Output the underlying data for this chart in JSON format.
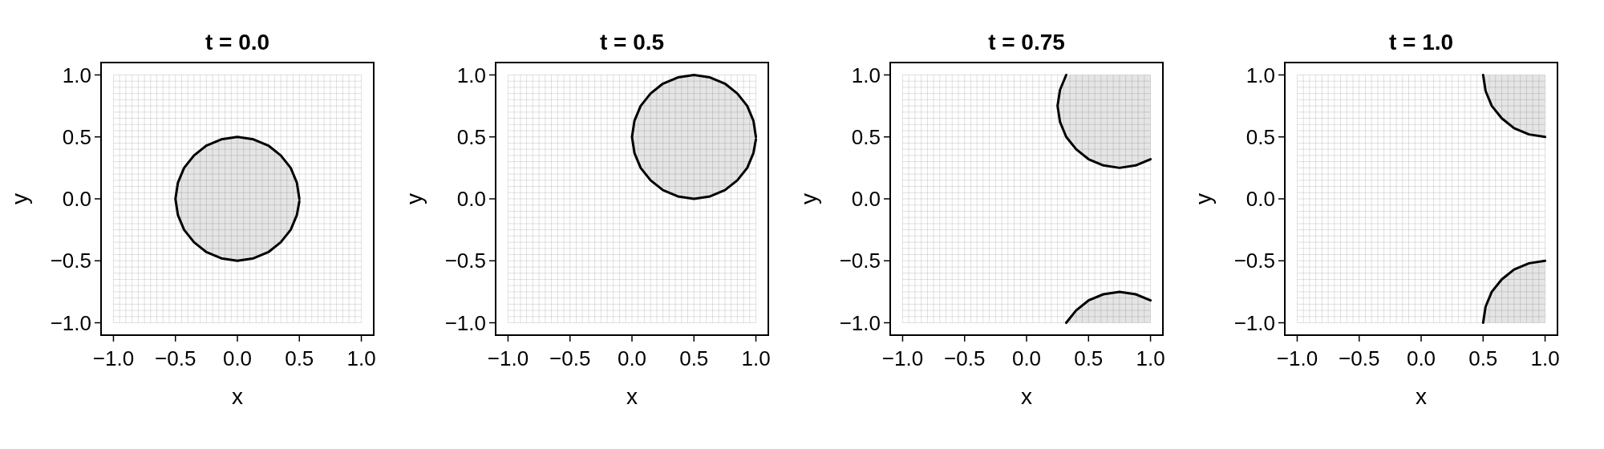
{
  "chart_data": [
    {
      "type": "line",
      "title": "t = 0.0",
      "xlabel": "x",
      "ylabel": "y",
      "xlim": [
        -1.1,
        1.1
      ],
      "ylim": [
        -1.1,
        1.1
      ],
      "grid": true,
      "xticks": [
        {
          "value": -1,
          "label": "−1.0"
        },
        {
          "value": -0.95,
          "label": null
        },
        {
          "value": -0.9,
          "label": null
        },
        {
          "value": -0.85,
          "label": null
        },
        {
          "value": -0.8,
          "label": null
        },
        {
          "value": -0.75,
          "label": null
        },
        {
          "value": -0.7,
          "label": null
        },
        {
          "value": -0.65,
          "label": null
        },
        {
          "value": -0.6,
          "label": null
        },
        {
          "value": -0.55,
          "label": null
        },
        {
          "value": -0.5,
          "label": "−0.5"
        },
        {
          "value": -0.45,
          "label": null
        },
        {
          "value": -0.4,
          "label": null
        },
        {
          "value": -0.35,
          "label": null
        },
        {
          "value": -0.3,
          "label": null
        },
        {
          "value": -0.25,
          "label": null
        },
        {
          "value": -0.2,
          "label": null
        },
        {
          "value": -0.15,
          "label": null
        },
        {
          "value": -0.1,
          "label": null
        },
        {
          "value": -0.05,
          "label": null
        },
        {
          "value": 0,
          "label": "0.0"
        },
        {
          "value": 0.05,
          "label": null
        },
        {
          "value": 0.1,
          "label": null
        },
        {
          "value": 0.15,
          "label": null
        },
        {
          "value": 0.2,
          "label": null
        },
        {
          "value": 0.25,
          "label": null
        },
        {
          "value": 0.3,
          "label": null
        },
        {
          "value": 0.35,
          "label": null
        },
        {
          "value": 0.4,
          "label": null
        },
        {
          "value": 0.45,
          "label": null
        },
        {
          "value": 0.5,
          "label": "0.5"
        },
        {
          "value": 0.55,
          "label": null
        },
        {
          "value": 0.6,
          "label": null
        },
        {
          "value": 0.65,
          "label": null
        },
        {
          "value": 0.7,
          "label": null
        },
        {
          "value": 0.75,
          "label": null
        },
        {
          "value": 0.8,
          "label": null
        },
        {
          "value": 0.85,
          "label": null
        },
        {
          "value": 0.9,
          "label": null
        },
        {
          "value": 0.95,
          "label": null
        },
        {
          "value": 1,
          "label": "1.0"
        }
      ],
      "yticks": [
        {
          "value": -1,
          "label": "−1.0"
        },
        {
          "value": -0.95,
          "label": null
        },
        {
          "value": -0.9,
          "label": null
        },
        {
          "value": -0.85,
          "label": null
        },
        {
          "value": -0.8,
          "label": null
        },
        {
          "value": -0.75,
          "label": null
        },
        {
          "value": -0.7,
          "label": null
        },
        {
          "value": -0.65,
          "label": null
        },
        {
          "value": -0.6,
          "label": null
        },
        {
          "value": -0.55,
          "label": null
        },
        {
          "value": -0.5,
          "label": "−0.5"
        },
        {
          "value": -0.45,
          "label": null
        },
        {
          "value": -0.4,
          "label": null
        },
        {
          "value": -0.35,
          "label": null
        },
        {
          "value": -0.3,
          "label": null
        },
        {
          "value": -0.25,
          "label": null
        },
        {
          "value": -0.2,
          "label": null
        },
        {
          "value": -0.15,
          "label": null
        },
        {
          "value": -0.1,
          "label": null
        },
        {
          "value": -0.05,
          "label": null
        },
        {
          "value": 0,
          "label": "0.0"
        },
        {
          "value": 0.05,
          "label": null
        },
        {
          "value": 0.1,
          "label": null
        },
        {
          "value": 0.15,
          "label": null
        },
        {
          "value": 0.2,
          "label": null
        },
        {
          "value": 0.25,
          "label": null
        },
        {
          "value": 0.3,
          "label": null
        },
        {
          "value": 0.35,
          "label": null
        },
        {
          "value": 0.4,
          "label": null
        },
        {
          "value": 0.45,
          "label": null
        },
        {
          "value": 0.5,
          "label": "0.5"
        },
        {
          "value": 0.55,
          "label": null
        },
        {
          "value": 0.6,
          "label": null
        },
        {
          "value": 0.65,
          "label": null
        },
        {
          "value": 0.7,
          "label": null
        },
        {
          "value": 0.75,
          "label": null
        },
        {
          "value": 0.8,
          "label": null
        },
        {
          "value": 0.85,
          "label": null
        },
        {
          "value": 0.9,
          "label": null
        },
        {
          "value": 0.95,
          "label": null
        },
        {
          "value": 1,
          "label": "1.0"
        }
      ],
      "series": [
        {
          "color": "#000000",
          "x": [
            0.5,
            0.48,
            0.43,
            0.35,
            0.25,
            0.13,
            0,
            -0.13,
            -0.25,
            -0.35,
            -0.43,
            -0.48,
            -0.5,
            -0.48,
            -0.43,
            -0.35,
            -0.25,
            -0.13,
            0,
            0.13,
            0.25,
            0.35,
            0.43,
            0.48,
            0.5
          ],
          "values": [
            0,
            0.13,
            0.25,
            0.35,
            0.43,
            0.48,
            0.5,
            0.48,
            0.43,
            0.35,
            0.25,
            0.13,
            0,
            -0.13,
            -0.25,
            -0.35,
            -0.43,
            -0.48,
            -0.5,
            -0.48,
            -0.43,
            -0.35,
            -0.25,
            -0.13,
            -0.02
          ]
        },
        {
          "color": "#000000",
          "x": [
            -0.5,
            -0.49,
            -0.48,
            -0.45,
            -0.4,
            -0.35,
            -0.3,
            -0.2,
            -0.1,
            0,
            0.1,
            0.2,
            0.3,
            0.35,
            0.4,
            0.45,
            0.48,
            0.49,
            0.5
          ],
          "values": [
            null,
            null,
            null,
            null,
            null,
            null,
            null,
            null,
            null,
            null,
            null,
            null,
            null,
            null,
            null,
            null,
            null,
            null,
            null
          ],
          "lower": [
            0,
            -0.1,
            -0.14,
            -0.22,
            -0.3,
            -0.36,
            -0.4,
            -0.46,
            -0.49,
            -0.5,
            -0.49,
            -0.46,
            -0.4,
            -0.36,
            -0.3,
            -0.22,
            -0.14,
            -0.1,
            0
          ],
          "upper": [
            0,
            0.1,
            0.14,
            0.22,
            0.3,
            0.36,
            0.4,
            0.46,
            0.49,
            0.5,
            0.49,
            0.46,
            0.4,
            0.36,
            0.3,
            0.22,
            0.14,
            0.1,
            0
          ]
        }
      ]
    },
    {
      "type": "line",
      "title": "t = 0.5",
      "xlabel": "x",
      "ylabel": "y",
      "xlim": [
        -1.1,
        1.1
      ],
      "ylim": [
        -1.1,
        1.1
      ],
      "grid": true,
      "xticks": [
        {
          "value": -1,
          "label": "−1.0"
        },
        {
          "value": -0.95,
          "label": null
        },
        {
          "value": -0.9,
          "label": null
        },
        {
          "value": -0.85,
          "label": null
        },
        {
          "value": -0.8,
          "label": null
        },
        {
          "value": -0.75,
          "label": null
        },
        {
          "value": -0.7,
          "label": null
        },
        {
          "value": -0.65,
          "label": null
        },
        {
          "value": -0.6,
          "label": null
        },
        {
          "value": -0.55,
          "label": null
        },
        {
          "value": -0.5,
          "label": "−0.5"
        },
        {
          "value": -0.45,
          "label": null
        },
        {
          "value": -0.4,
          "label": null
        },
        {
          "value": -0.35,
          "label": null
        },
        {
          "value": -0.3,
          "label": null
        },
        {
          "value": -0.25,
          "label": null
        },
        {
          "value": -0.2,
          "label": null
        },
        {
          "value": -0.15,
          "label": null
        },
        {
          "value": -0.1,
          "label": null
        },
        {
          "value": -0.05,
          "label": null
        },
        {
          "value": 0,
          "label": "0.0"
        },
        {
          "value": 0.05,
          "label": null
        },
        {
          "value": 0.1,
          "label": null
        },
        {
          "value": 0.15,
          "label": null
        },
        {
          "value": 0.2,
          "label": null
        },
        {
          "value": 0.25,
          "label": null
        },
        {
          "value": 0.3,
          "label": null
        },
        {
          "value": 0.35,
          "label": null
        },
        {
          "value": 0.4,
          "label": null
        },
        {
          "value": 0.45,
          "label": null
        },
        {
          "value": 0.5,
          "label": "0.5"
        },
        {
          "value": 0.55,
          "label": null
        },
        {
          "value": 0.6,
          "label": null
        },
        {
          "value": 0.65,
          "label": null
        },
        {
          "value": 0.7,
          "label": null
        },
        {
          "value": 0.75,
          "label": null
        },
        {
          "value": 0.8,
          "label": null
        },
        {
          "value": 0.85,
          "label": null
        },
        {
          "value": 0.9,
          "label": null
        },
        {
          "value": 0.95,
          "label": null
        },
        {
          "value": 1,
          "label": "1.0"
        }
      ],
      "yticks": [
        {
          "value": -1,
          "label": "−1.0"
        },
        {
          "value": -0.95,
          "label": null
        },
        {
          "value": -0.9,
          "label": null
        },
        {
          "value": -0.85,
          "label": null
        },
        {
          "value": -0.8,
          "label": null
        },
        {
          "value": -0.75,
          "label": null
        },
        {
          "value": -0.7,
          "label": null
        },
        {
          "value": -0.65,
          "label": null
        },
        {
          "value": -0.6,
          "label": null
        },
        {
          "value": -0.55,
          "label": null
        },
        {
          "value": -0.5,
          "label": "−0.5"
        },
        {
          "value": -0.45,
          "label": null
        },
        {
          "value": -0.4,
          "label": null
        },
        {
          "value": -0.35,
          "label": null
        },
        {
          "value": -0.3,
          "label": null
        },
        {
          "value": -0.25,
          "label": null
        },
        {
          "value": -0.2,
          "label": null
        },
        {
          "value": -0.15,
          "label": null
        },
        {
          "value": -0.1,
          "label": null
        },
        {
          "value": -0.05,
          "label": null
        },
        {
          "value": 0,
          "label": "0.0"
        },
        {
          "value": 0.05,
          "label": null
        },
        {
          "value": 0.1,
          "label": null
        },
        {
          "value": 0.15,
          "label": null
        },
        {
          "value": 0.2,
          "label": null
        },
        {
          "value": 0.25,
          "label": null
        },
        {
          "value": 0.3,
          "label": null
        },
        {
          "value": 0.35,
          "label": null
        },
        {
          "value": 0.4,
          "label": null
        },
        {
          "value": 0.45,
          "label": null
        },
        {
          "value": 0.5,
          "label": "0.5"
        },
        {
          "value": 0.55,
          "label": null
        },
        {
          "value": 0.6,
          "label": null
        },
        {
          "value": 0.65,
          "label": null
        },
        {
          "value": 0.7,
          "label": null
        },
        {
          "value": 0.75,
          "label": null
        },
        {
          "value": 0.8,
          "label": null
        },
        {
          "value": 0.85,
          "label": null
        },
        {
          "value": 0.9,
          "label": null
        },
        {
          "value": 0.95,
          "label": null
        },
        {
          "value": 1,
          "label": "1.0"
        }
      ],
      "series": [
        {
          "color": "#000000",
          "x": [
            1,
            0.98,
            0.93,
            0.85,
            0.75,
            0.63,
            0.5,
            0.37,
            0.25,
            0.15,
            0.07,
            0.02,
            0,
            0.02,
            0.07,
            0.15,
            0.25,
            0.37,
            0.5,
            0.63,
            0.75,
            0.85,
            0.93,
            0.98,
            1
          ],
          "values": [
            0.5,
            0.63,
            0.75,
            0.85,
            0.93,
            0.98,
            1,
            0.98,
            0.93,
            0.85,
            0.75,
            0.63,
            0.5,
            0.37,
            0.25,
            0.15,
            0.07,
            0.02,
            0,
            0.02,
            0.07,
            0.15,
            0.25,
            0.37,
            0.48
          ]
        },
        {
          "color": "#000000",
          "x": [
            0,
            0.01,
            0.02,
            0.05,
            0.1,
            0.15,
            0.2,
            0.3,
            0.4,
            0.5,
            0.6,
            0.7,
            0.8,
            0.85,
            0.9,
            0.95,
            0.98,
            0.99,
            1
          ],
          "values": [
            null,
            null,
            null,
            null,
            null,
            null,
            null,
            null,
            null,
            null,
            null,
            null,
            null,
            null,
            null,
            null,
            null,
            null,
            null
          ],
          "lower": [
            0.5,
            0.4,
            0.36,
            0.28,
            0.2,
            0.14,
            0.1,
            0.04,
            0.01,
            0,
            0.01,
            0.04,
            0.1,
            0.14,
            0.2,
            0.28,
            0.36,
            0.4,
            0.5
          ],
          "upper": [
            0.5,
            0.6,
            0.64,
            0.72,
            0.8,
            0.86,
            0.9,
            0.96,
            0.99,
            1,
            0.99,
            0.96,
            0.9,
            0.86,
            0.8,
            0.72,
            0.64,
            0.6,
            0.5
          ]
        }
      ]
    },
    {
      "type": "line",
      "title": "t = 0.75",
      "xlabel": "x",
      "ylabel": "y",
      "xlim": [
        -1.1,
        1.1
      ],
      "ylim": [
        -1.1,
        1.1
      ],
      "grid": true,
      "xticks": [
        {
          "value": -1,
          "label": "−1.0"
        },
        {
          "value": -0.95,
          "label": null
        },
        {
          "value": -0.9,
          "label": null
        },
        {
          "value": -0.85,
          "label": null
        },
        {
          "value": -0.8,
          "label": null
        },
        {
          "value": -0.75,
          "label": null
        },
        {
          "value": -0.7,
          "label": null
        },
        {
          "value": -0.65,
          "label": null
        },
        {
          "value": -0.6,
          "label": null
        },
        {
          "value": -0.55,
          "label": null
        },
        {
          "value": -0.5,
          "label": "−0.5"
        },
        {
          "value": -0.45,
          "label": null
        },
        {
          "value": -0.4,
          "label": null
        },
        {
          "value": -0.35,
          "label": null
        },
        {
          "value": -0.3,
          "label": null
        },
        {
          "value": -0.25,
          "label": null
        },
        {
          "value": -0.2,
          "label": null
        },
        {
          "value": -0.15,
          "label": null
        },
        {
          "value": -0.1,
          "label": null
        },
        {
          "value": -0.05,
          "label": null
        },
        {
          "value": 0,
          "label": "0.0"
        },
        {
          "value": 0.05,
          "label": null
        },
        {
          "value": 0.1,
          "label": null
        },
        {
          "value": 0.15,
          "label": null
        },
        {
          "value": 0.2,
          "label": null
        },
        {
          "value": 0.25,
          "label": null
        },
        {
          "value": 0.3,
          "label": null
        },
        {
          "value": 0.35,
          "label": null
        },
        {
          "value": 0.4,
          "label": null
        },
        {
          "value": 0.45,
          "label": null
        },
        {
          "value": 0.5,
          "label": "0.5"
        },
        {
          "value": 0.55,
          "label": null
        },
        {
          "value": 0.6,
          "label": null
        },
        {
          "value": 0.65,
          "label": null
        },
        {
          "value": 0.7,
          "label": null
        },
        {
          "value": 0.75,
          "label": null
        },
        {
          "value": 0.8,
          "label": null
        },
        {
          "value": 0.85,
          "label": null
        },
        {
          "value": 0.9,
          "label": null
        },
        {
          "value": 0.95,
          "label": null
        },
        {
          "value": 1,
          "label": "1.0"
        }
      ],
      "yticks": [
        {
          "value": -1,
          "label": "−1.0"
        },
        {
          "value": -0.95,
          "label": null
        },
        {
          "value": -0.9,
          "label": null
        },
        {
          "value": -0.85,
          "label": null
        },
        {
          "value": -0.8,
          "label": null
        },
        {
          "value": -0.75,
          "label": null
        },
        {
          "value": -0.7,
          "label": null
        },
        {
          "value": -0.65,
          "label": null
        },
        {
          "value": -0.6,
          "label": null
        },
        {
          "value": -0.55,
          "label": null
        },
        {
          "value": -0.5,
          "label": "−0.5"
        },
        {
          "value": -0.45,
          "label": null
        },
        {
          "value": -0.4,
          "label": null
        },
        {
          "value": -0.35,
          "label": null
        },
        {
          "value": -0.3,
          "label": null
        },
        {
          "value": -0.25,
          "label": null
        },
        {
          "value": -0.2,
          "label": null
        },
        {
          "value": -0.15,
          "label": null
        },
        {
          "value": -0.1,
          "label": null
        },
        {
          "value": -0.05,
          "label": null
        },
        {
          "value": 0,
          "label": "0.0"
        },
        {
          "value": 0.05,
          "label": null
        },
        {
          "value": 0.1,
          "label": null
        },
        {
          "value": 0.15,
          "label": null
        },
        {
          "value": 0.2,
          "label": null
        },
        {
          "value": 0.25,
          "label": null
        },
        {
          "value": 0.3,
          "label": null
        },
        {
          "value": 0.35,
          "label": null
        },
        {
          "value": 0.4,
          "label": null
        },
        {
          "value": 0.45,
          "label": null
        },
        {
          "value": 0.5,
          "label": "0.5"
        },
        {
          "value": 0.55,
          "label": null
        },
        {
          "value": 0.6,
          "label": null
        },
        {
          "value": 0.65,
          "label": null
        },
        {
          "value": 0.7,
          "label": null
        },
        {
          "value": 0.75,
          "label": null
        },
        {
          "value": 0.8,
          "label": null
        },
        {
          "value": 0.85,
          "label": null
        },
        {
          "value": 0.9,
          "label": null
        },
        {
          "value": 0.95,
          "label": null
        },
        {
          "value": 1,
          "label": "1.0"
        }
      ],
      "series": [
        {
          "color": "#000000",
          "x": [
            0.25,
            0.26,
            0.27,
            0.3,
            0.35,
            0.4,
            0.45,
            0.55,
            0.65,
            0.75,
            0.85,
            0.95,
            1
          ],
          "values": [
            null,
            null,
            null,
            null,
            null,
            null,
            null,
            null,
            null,
            null,
            null,
            null,
            null
          ],
          "lower": [
            0.75,
            0.65,
            0.61,
            0.53,
            0.45,
            0.39,
            0.35,
            0.29,
            0.26,
            0.25,
            0.26,
            0.29,
            0.32
          ],
          "upper": [
            0.75,
            0.85,
            0.89,
            0.97,
            1,
            1,
            1,
            1,
            1,
            1,
            1,
            1,
            1
          ]
        },
        {
          "color": "#000000",
          "x": [
            0.32,
            0.27,
            0.25,
            0.27,
            0.32,
            0.4,
            0.5,
            0.62,
            0.75,
            0.88,
            1
          ],
          "values": [
            1,
            0.88,
            0.75,
            0.62,
            0.5,
            0.4,
            0.32,
            0.27,
            0.25,
            0.27,
            0.32
          ]
        },
        {
          "color": "#000000",
          "x": [
            1,
            0.88,
            0.75,
            0.62,
            0.5,
            0.4,
            0.32
          ],
          "values": [
            -0.82,
            -0.77,
            -0.75,
            -0.77,
            -0.82,
            -0.9,
            -1
          ]
        },
        {
          "color": "#000000",
          "x": [
            0.32,
            0.35,
            0.4,
            0.45,
            0.55,
            0.65,
            0.75,
            0.85,
            0.95,
            1
          ],
          "values": [
            null,
            null,
            null,
            null,
            null,
            null,
            null,
            null,
            null,
            null
          ],
          "lower": [
            -1,
            -1,
            -1,
            -1,
            -1,
            -1,
            -1,
            -1,
            -1,
            -1
          ],
          "upper": [
            -1,
            -0.95,
            -0.89,
            -0.85,
            -0.79,
            -0.76,
            -0.75,
            -0.76,
            -0.79,
            -0.82
          ]
        }
      ]
    },
    {
      "type": "line",
      "title": "t = 1.0",
      "xlabel": "x",
      "ylabel": "y",
      "xlim": [
        -1.1,
        1.1
      ],
      "ylim": [
        -1.1,
        1.1
      ],
      "grid": true,
      "xticks": [
        {
          "value": -1,
          "label": "−1.0"
        },
        {
          "value": -0.95,
          "label": null
        },
        {
          "value": -0.9,
          "label": null
        },
        {
          "value": -0.85,
          "label": null
        },
        {
          "value": -0.8,
          "label": null
        },
        {
          "value": -0.75,
          "label": null
        },
        {
          "value": -0.7,
          "label": null
        },
        {
          "value": -0.65,
          "label": null
        },
        {
          "value": -0.6,
          "label": null
        },
        {
          "value": -0.55,
          "label": null
        },
        {
          "value": -0.5,
          "label": "−0.5"
        },
        {
          "value": -0.45,
          "label": null
        },
        {
          "value": -0.4,
          "label": null
        },
        {
          "value": -0.35,
          "label": null
        },
        {
          "value": -0.3,
          "label": null
        },
        {
          "value": -0.25,
          "label": null
        },
        {
          "value": -0.2,
          "label": null
        },
        {
          "value": -0.15,
          "label": null
        },
        {
          "value": -0.1,
          "label": null
        },
        {
          "value": -0.05,
          "label": null
        },
        {
          "value": 0,
          "label": "0.0"
        },
        {
          "value": 0.05,
          "label": null
        },
        {
          "value": 0.1,
          "label": null
        },
        {
          "value": 0.15,
          "label": null
        },
        {
          "value": 0.2,
          "label": null
        },
        {
          "value": 0.25,
          "label": null
        },
        {
          "value": 0.3,
          "label": null
        },
        {
          "value": 0.35,
          "label": null
        },
        {
          "value": 0.4,
          "label": null
        },
        {
          "value": 0.45,
          "label": null
        },
        {
          "value": 0.5,
          "label": "0.5"
        },
        {
          "value": 0.55,
          "label": null
        },
        {
          "value": 0.6,
          "label": null
        },
        {
          "value": 0.65,
          "label": null
        },
        {
          "value": 0.7,
          "label": null
        },
        {
          "value": 0.75,
          "label": null
        },
        {
          "value": 0.8,
          "label": null
        },
        {
          "value": 0.85,
          "label": null
        },
        {
          "value": 0.9,
          "label": null
        },
        {
          "value": 0.95,
          "label": null
        },
        {
          "value": 1,
          "label": "1.0"
        }
      ],
      "yticks": [
        {
          "value": -1,
          "label": "−1.0"
        },
        {
          "value": -0.95,
          "label": null
        },
        {
          "value": -0.9,
          "label": null
        },
        {
          "value": -0.85,
          "label": null
        },
        {
          "value": -0.8,
          "label": null
        },
        {
          "value": -0.75,
          "label": null
        },
        {
          "value": -0.7,
          "label": null
        },
        {
          "value": -0.65,
          "label": null
        },
        {
          "value": -0.6,
          "label": null
        },
        {
          "value": -0.55,
          "label": null
        },
        {
          "value": -0.5,
          "label": "−0.5"
        },
        {
          "value": -0.45,
          "label": null
        },
        {
          "value": -0.4,
          "label": null
        },
        {
          "value": -0.35,
          "label": null
        },
        {
          "value": -0.3,
          "label": null
        },
        {
          "value": -0.25,
          "label": null
        },
        {
          "value": -0.2,
          "label": null
        },
        {
          "value": -0.15,
          "label": null
        },
        {
          "value": -0.1,
          "label": null
        },
        {
          "value": -0.05,
          "label": null
        },
        {
          "value": 0,
          "label": "0.0"
        },
        {
          "value": 0.05,
          "label": null
        },
        {
          "value": 0.1,
          "label": null
        },
        {
          "value": 0.15,
          "label": null
        },
        {
          "value": 0.2,
          "label": null
        },
        {
          "value": 0.25,
          "label": null
        },
        {
          "value": 0.3,
          "label": null
        },
        {
          "value": 0.35,
          "label": null
        },
        {
          "value": 0.4,
          "label": null
        },
        {
          "value": 0.45,
          "label": null
        },
        {
          "value": 0.5,
          "label": "0.5"
        },
        {
          "value": 0.55,
          "label": null
        },
        {
          "value": 0.6,
          "label": null
        },
        {
          "value": 0.65,
          "label": null
        },
        {
          "value": 0.7,
          "label": null
        },
        {
          "value": 0.75,
          "label": null
        },
        {
          "value": 0.8,
          "label": null
        },
        {
          "value": 0.85,
          "label": null
        },
        {
          "value": 0.9,
          "label": null
        },
        {
          "value": 0.95,
          "label": null
        },
        {
          "value": 1,
          "label": "1.0"
        }
      ],
      "series": [
        {
          "color": "#000000",
          "x": [
            0.5,
            0.52,
            0.57,
            0.65,
            0.75,
            0.87,
            1
          ],
          "values": [
            1,
            0.87,
            0.75,
            0.65,
            0.57,
            0.52,
            0.5
          ]
        },
        {
          "color": "#000000",
          "x": [
            0.5,
            0.52,
            0.57,
            0.65,
            0.75,
            0.87,
            1
          ],
          "values": [
            -1,
            -0.87,
            -0.75,
            -0.65,
            -0.57,
            -0.52,
            -0.5
          ]
        },
        {
          "color": "#000000",
          "x": [
            0.5,
            0.51,
            0.52,
            0.55,
            0.6,
            0.65,
            0.7,
            0.8,
            0.9,
            1
          ],
          "values": [
            null,
            null,
            null,
            null,
            null,
            null,
            null,
            null,
            null,
            null
          ],
          "lower": [
            1,
            0.9,
            0.86,
            0.78,
            0.7,
            0.64,
            0.6,
            0.54,
            0.51,
            0.5
          ],
          "upper": [
            1,
            1,
            1,
            1,
            1,
            1,
            1,
            1,
            1,
            1
          ]
        },
        {
          "color": "#000000",
          "x": [
            0.5,
            0.51,
            0.52,
            0.55,
            0.6,
            0.65,
            0.7,
            0.8,
            0.9,
            1
          ],
          "values": [
            null,
            null,
            null,
            null,
            null,
            null,
            null,
            null,
            null,
            null
          ],
          "lower": [
            -1,
            -1,
            -1,
            -1,
            -1,
            -1,
            -1,
            -1,
            -1,
            -1
          ],
          "upper": [
            -1,
            -0.9,
            -0.86,
            -0.78,
            -0.7,
            -0.64,
            -0.6,
            -0.54,
            -0.51,
            -0.5
          ]
        }
      ]
    }
  ]
}
